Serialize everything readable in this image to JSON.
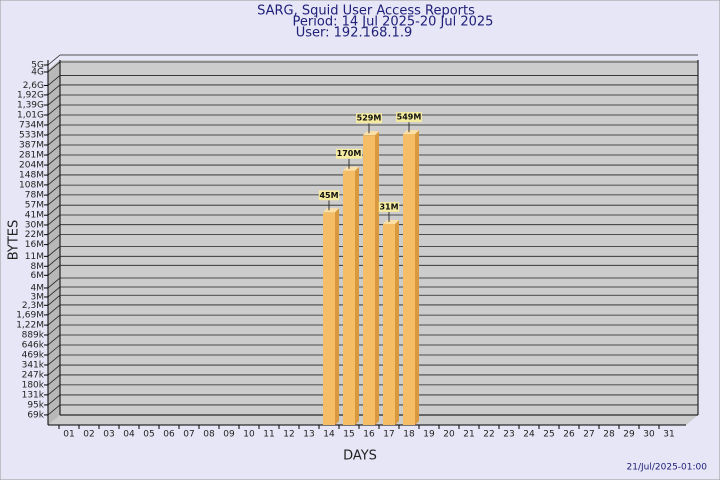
{
  "chart_data": {
    "type": "bar",
    "title": "SARG, Squid User Access Reports",
    "subtitle": "Period: 14 Jul 2025-20 Jul 2025",
    "user": "User: 192.168.1.9",
    "y_label": "BYTES",
    "x_label": "DAYS",
    "footer": "21/Jul/2025-01:00",
    "categories": [
      "01",
      "02",
      "03",
      "04",
      "05",
      "06",
      "07",
      "08",
      "09",
      "10",
      "11",
      "12",
      "13",
      "14",
      "15",
      "16",
      "17",
      "18",
      "19",
      "20",
      "21",
      "22",
      "23",
      "24",
      "25",
      "26",
      "27",
      "28",
      "29",
      "30",
      "31"
    ],
    "values": [
      null,
      null,
      null,
      null,
      null,
      null,
      null,
      null,
      null,
      null,
      null,
      null,
      null,
      45000000,
      170000000,
      529000000,
      31000000,
      549000000,
      null,
      null,
      null,
      null,
      null,
      null,
      null,
      null,
      null,
      null,
      null,
      null,
      null
    ],
    "value_labels": [
      null,
      null,
      null,
      null,
      null,
      null,
      null,
      null,
      null,
      null,
      null,
      null,
      null,
      "45M",
      "170M",
      "529M",
      "31M",
      "549M",
      null,
      null,
      null,
      null,
      null,
      null,
      null,
      null,
      null,
      null,
      null,
      null,
      null
    ],
    "color": "#f5be66",
    "log": true,
    "grid": true,
    "ylim": [
      50000,
      5000000000
    ],
    "yticks": [
      {
        "value": 69000,
        "label": "69k"
      },
      {
        "value": 95000,
        "label": "95k"
      },
      {
        "value": 131000,
        "label": "131k"
      },
      {
        "value": 180000,
        "label": "180k"
      },
      {
        "value": 247000,
        "label": "247k"
      },
      {
        "value": 341000,
        "label": "341k"
      },
      {
        "value": 469000,
        "label": "469k"
      },
      {
        "value": 646000,
        "label": "646k"
      },
      {
        "value": 889000,
        "label": "889k"
      },
      {
        "value": 1220000,
        "label": "1,22M"
      },
      {
        "value": 1690000,
        "label": "1,69M"
      },
      {
        "value": 2300000,
        "label": "2,3M"
      },
      {
        "value": 3000000,
        "label": "3M"
      },
      {
        "value": 4000000,
        "label": "4M"
      },
      {
        "value": 6000000,
        "label": "6M"
      },
      {
        "value": 8000000,
        "label": "8M"
      },
      {
        "value": 11000000,
        "label": "11M"
      },
      {
        "value": 16000000,
        "label": "16M"
      },
      {
        "value": 22000000,
        "label": "22M"
      },
      {
        "value": 30000000,
        "label": "30M"
      },
      {
        "value": 41000000,
        "label": "41M"
      },
      {
        "value": 57000000,
        "label": "57M"
      },
      {
        "value": 78000000,
        "label": "78M"
      },
      {
        "value": 108000000,
        "label": "108M"
      },
      {
        "value": 148000000,
        "label": "148M"
      },
      {
        "value": 204000000,
        "label": "204M"
      },
      {
        "value": 281000000,
        "label": "281M"
      },
      {
        "value": 387000000,
        "label": "387M"
      },
      {
        "value": 533000000,
        "label": "533M"
      },
      {
        "value": 734000000,
        "label": "734M"
      },
      {
        "value": 1010000000,
        "label": "1,01G"
      },
      {
        "value": 1390000000,
        "label": "1,39G"
      },
      {
        "value": 1920000000,
        "label": "1,92G"
      },
      {
        "value": 2600000000,
        "label": "2,6G"
      },
      {
        "value": 4000000000,
        "label": "4G"
      },
      {
        "value": 5000000000,
        "label": "5G"
      }
    ]
  }
}
